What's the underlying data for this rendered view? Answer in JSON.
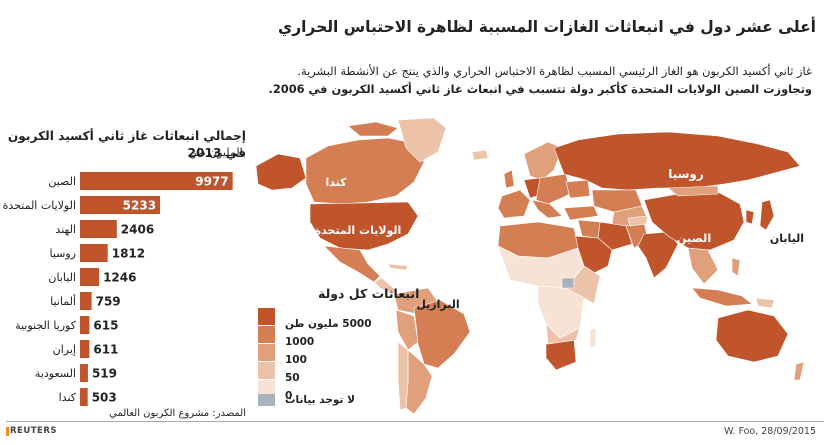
{
  "title": "أعلى عشر دول في انبعاثات الغازات المسببة لظاهرة الاحتباس الحراري",
  "description": {
    "line1": "غاز ثاني أكسيد الكربون هو الغاز الرئيسي المسبب لظاهرة الاحتباس الحراري والذي ينتج عن الأنشطة البشرية.",
    "line2": "وتجاوزت الصين الولايات المتحدة كأكبر دولة تتسبب في انبعاث غاز ثاني أكسيد الكربون في 2006."
  },
  "chart_data": {
    "type": "bar",
    "orientation": "horizontal",
    "title": "إجمالي انبعاثات غاز ثاني أكسيد الكربون في 2013",
    "subtitle": "بالمليون طن",
    "categories": [
      "الصين",
      "الولايات المتحدة",
      "الهند",
      "روسيا",
      "اليابان",
      "ألمانيا",
      "كوريا الجنوبية",
      "إيران",
      "السعودية",
      "كندا"
    ],
    "values": [
      9977,
      5233,
      2406,
      1812,
      1246,
      759,
      615,
      611,
      519,
      503
    ],
    "xlim": [
      0,
      10000
    ],
    "bar_color": "#c0552b"
  },
  "map": {
    "legend_title": "انبعاثات كل دولة",
    "legend": [
      {
        "label": "5000 مليون طن",
        "color": "#c0552b"
      },
      {
        "label": "1000",
        "color": "#d47e53"
      },
      {
        "label": "100",
        "color": "#e0a07c"
      },
      {
        "label": "50",
        "color": "#ecc3a9"
      },
      {
        "label": "0",
        "color": "#f6e3d6"
      },
      {
        "label": "لا توجد بيانات",
        "color": "#a8b3bd"
      }
    ],
    "country_labels": {
      "russia": "روسيا",
      "canada": "كندا",
      "usa": "الولايات المتحدة",
      "china": "الصين",
      "japan": "اليابان",
      "brazil": "البرازيل"
    }
  },
  "source": "المصدر: مشروع الكربون العالمي",
  "footer": {
    "agency": "REUTERS",
    "credit": "W. Foo, 28/09/2015"
  }
}
